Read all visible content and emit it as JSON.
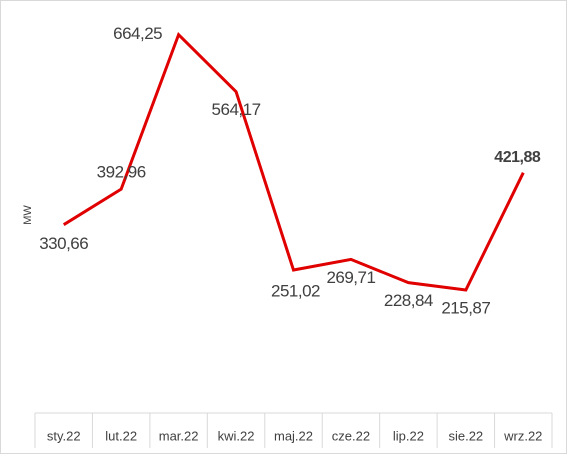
{
  "chart_data": {
    "type": "line",
    "y_label": "MW",
    "categories": [
      "sty.22",
      "lut.22",
      "mar.22",
      "kwi.22",
      "maj.22",
      "cze.22",
      "lip.22",
      "sie.22",
      "wrz.22"
    ],
    "series": [
      {
        "name": "MW",
        "color": "#e00000",
        "values": [
          330.66,
          392.96,
          664.25,
          564.17,
          251.02,
          269.71,
          228.84,
          215.87,
          421.88
        ],
        "value_labels": [
          "330,66",
          "392,96",
          "664,25",
          "564,17",
          "251,02",
          "269,71",
          "228,84",
          "215,87",
          "421,88"
        ]
      }
    ],
    "ylim": [
      0,
      700
    ]
  }
}
